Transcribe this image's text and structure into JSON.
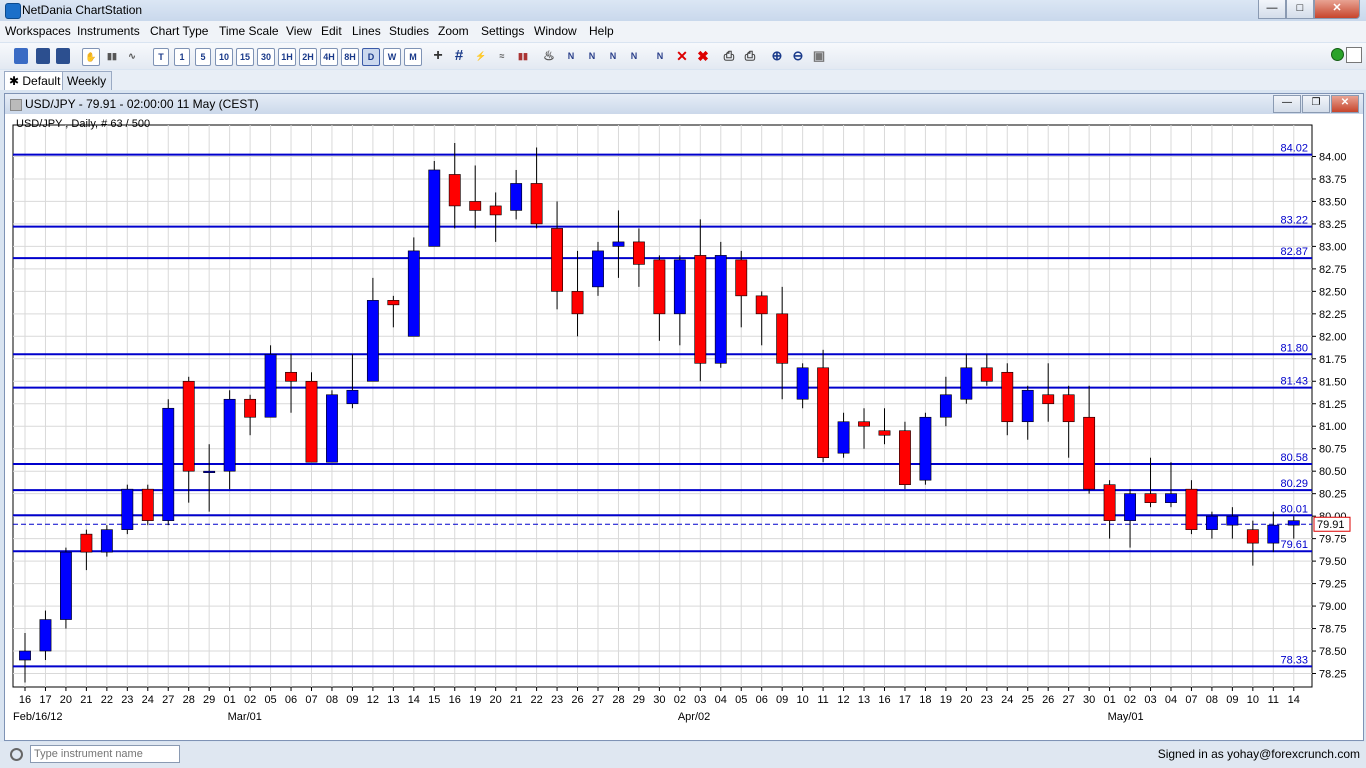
{
  "app": {
    "title": "NetDania ChartStation"
  },
  "menu": {
    "items": [
      "Workspaces",
      "Instruments",
      "Chart Type",
      "Time Scale",
      "View",
      "Edit",
      "Lines",
      "Studies",
      "Zoom",
      "Settings",
      "Window",
      "Help"
    ]
  },
  "toolbar": {
    "timescales": [
      "T",
      "1",
      "5",
      "10",
      "15",
      "30",
      "1H",
      "2H",
      "4H",
      "8H",
      "D",
      "W",
      "M"
    ],
    "selected": "D"
  },
  "tabs": [
    {
      "label": "Default",
      "active": true
    },
    {
      "label": "Weekly",
      "active": false
    }
  ],
  "chart_window": {
    "title": "USD/JPY - 79.91 - 02:00:00  11 May (CEST)"
  },
  "bottom": {
    "search_placeholder": "Type instrument name",
    "signed_in": "Signed in as yohay@forexcrunch.com"
  },
  "chart_data": {
    "type": "candlestick",
    "title": "USD/JPY , Daily, # 63 / 500",
    "y_ticks": [
      "84.00",
      "83.75",
      "83.50",
      "83.25",
      "83.00",
      "82.75",
      "82.50",
      "82.25",
      "82.00",
      "81.75",
      "81.50",
      "81.25",
      "81.00",
      "80.75",
      "80.50",
      "80.25",
      "80.00",
      "79.75",
      "79.50",
      "79.25",
      "79.00",
      "78.75",
      "78.50",
      "78.25"
    ],
    "ylim": [
      78.1,
      84.35
    ],
    "x_labels": [
      "16",
      "17",
      "20",
      "21",
      "22",
      "23",
      "24",
      "27",
      "28",
      "29",
      "01",
      "02",
      "05",
      "06",
      "07",
      "08",
      "09",
      "12",
      "13",
      "14",
      "15",
      "16",
      "19",
      "20",
      "21",
      "22",
      "23",
      "26",
      "27",
      "28",
      "29",
      "30",
      "02",
      "03",
      "04",
      "05",
      "06",
      "09",
      "10",
      "11",
      "12",
      "13",
      "16",
      "17",
      "18",
      "19",
      "20",
      "23",
      "24",
      "25",
      "26",
      "27",
      "30",
      "01",
      "02",
      "03",
      "04",
      "07",
      "08",
      "09",
      "10",
      "11",
      "14"
    ],
    "month_labels": [
      {
        "label": "Feb/16/12",
        "index": 0
      },
      {
        "label": "Mar/01",
        "index": 10
      },
      {
        "label": "Apr/02",
        "index": 32
      },
      {
        "label": "May/01",
        "index": 53
      }
    ],
    "horizontal_lines": [
      84.02,
      83.22,
      82.87,
      81.8,
      81.43,
      80.58,
      80.29,
      80.01,
      79.61,
      78.33
    ],
    "horizontal_line_labels": [
      "84.02",
      "83.22",
      "82.87",
      "81.80",
      "81.43",
      "80.58",
      "80.29",
      "80.01",
      "79.61",
      "78.33"
    ],
    "current_price": "79.91",
    "current_value": 79.91,
    "candles": [
      [
        78.4,
        78.5,
        78.7,
        78.15
      ],
      [
        78.5,
        78.85,
        78.95,
        78.4
      ],
      [
        78.85,
        79.6,
        79.65,
        78.75
      ],
      [
        79.8,
        79.6,
        79.85,
        79.4
      ],
      [
        79.6,
        79.85,
        79.9,
        79.55
      ],
      [
        79.85,
        80.3,
        80.35,
        79.8
      ],
      [
        80.3,
        79.95,
        80.35,
        79.9
      ],
      [
        79.95,
        81.2,
        81.3,
        79.9
      ],
      [
        81.5,
        80.5,
        81.55,
        80.15
      ],
      [
        80.5,
        80.5,
        80.8,
        80.05
      ],
      [
        80.5,
        81.3,
        81.4,
        80.3
      ],
      [
        81.3,
        81.1,
        81.35,
        80.9
      ],
      [
        81.1,
        81.8,
        81.9,
        81.1
      ],
      [
        81.6,
        81.5,
        81.8,
        81.15
      ],
      [
        81.5,
        80.6,
        81.6,
        80.6
      ],
      [
        80.6,
        81.35,
        81.4,
        80.6
      ],
      [
        81.25,
        81.4,
        81.8,
        81.2
      ],
      [
        81.5,
        82.4,
        82.65,
        81.5
      ],
      [
        82.4,
        82.35,
        82.45,
        82.1
      ],
      [
        82.0,
        82.95,
        83.1,
        82.0
      ],
      [
        83.0,
        83.85,
        83.95,
        83.0
      ],
      [
        83.8,
        83.45,
        84.15,
        83.2
      ],
      [
        83.5,
        83.4,
        83.9,
        83.2
      ],
      [
        83.45,
        83.35,
        83.6,
        83.05
      ],
      [
        83.4,
        83.7,
        83.85,
        83.3
      ],
      [
        83.7,
        83.25,
        84.1,
        83.2
      ],
      [
        83.2,
        82.5,
        83.5,
        82.3
      ],
      [
        82.5,
        82.25,
        82.95,
        82.0
      ],
      [
        82.55,
        82.95,
        83.05,
        82.45
      ],
      [
        83.0,
        83.05,
        83.4,
        82.65
      ],
      [
        83.05,
        82.8,
        83.2,
        82.55
      ],
      [
        82.85,
        82.25,
        82.9,
        81.95
      ],
      [
        82.25,
        82.85,
        82.9,
        81.9
      ],
      [
        82.9,
        81.7,
        83.3,
        81.5
      ],
      [
        81.7,
        82.9,
        83.05,
        81.65
      ],
      [
        82.85,
        82.45,
        82.95,
        82.1
      ],
      [
        82.45,
        82.25,
        82.5,
        81.9
      ],
      [
        82.25,
        81.7,
        82.55,
        81.3
      ],
      [
        81.3,
        81.65,
        81.7,
        81.2
      ],
      [
        81.65,
        80.65,
        81.85,
        80.6
      ],
      [
        80.7,
        81.05,
        81.15,
        80.65
      ],
      [
        81.05,
        81.0,
        81.2,
        80.75
      ],
      [
        80.95,
        80.9,
        81.2,
        80.8
      ],
      [
        80.95,
        80.35,
        81.05,
        80.3
      ],
      [
        80.4,
        81.1,
        81.15,
        80.35
      ],
      [
        81.1,
        81.35,
        81.55,
        81.0
      ],
      [
        81.3,
        81.65,
        81.8,
        81.25
      ],
      [
        81.65,
        81.5,
        81.8,
        81.45
      ],
      [
        81.6,
        81.05,
        81.7,
        80.9
      ],
      [
        81.05,
        81.4,
        81.45,
        80.85
      ],
      [
        81.35,
        81.25,
        81.7,
        81.05
      ],
      [
        81.35,
        81.05,
        81.45,
        80.65
      ],
      [
        81.1,
        80.3,
        81.45,
        80.25
      ],
      [
        80.35,
        79.95,
        80.4,
        79.75
      ],
      [
        79.95,
        80.25,
        80.3,
        79.65
      ],
      [
        80.25,
        80.15,
        80.65,
        80.1
      ],
      [
        80.15,
        80.25,
        80.6,
        80.1
      ],
      [
        80.3,
        79.85,
        80.4,
        79.8
      ],
      [
        79.85,
        80.0,
        80.05,
        79.75
      ],
      [
        79.9,
        80.0,
        80.1,
        79.75
      ],
      [
        79.85,
        79.7,
        79.95,
        79.45
      ],
      [
        79.7,
        79.9,
        80.05,
        79.6
      ],
      [
        79.9,
        79.95,
        80.0,
        79.75
      ]
    ]
  }
}
